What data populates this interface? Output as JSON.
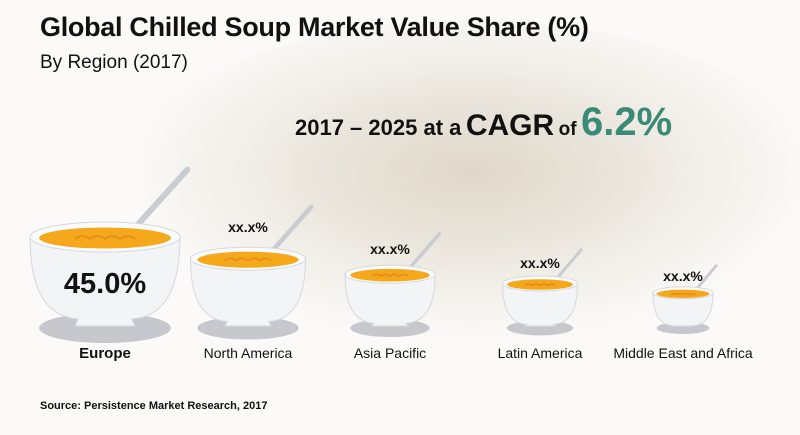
{
  "chart_data": {
    "type": "bar",
    "title": "Global Chilled Soup Market Value Share (%)",
    "subtitle": "By Region (2017)",
    "annotation": {
      "text_years": "2017 – 2025 at a",
      "text_cagr": "CAGR",
      "text_of": "of",
      "cagr_value": "6.2%"
    },
    "categories": [
      "Europe",
      "North America",
      "Asia Pacific",
      "Latin America",
      "Middle East and Africa"
    ],
    "values": [
      45.0,
      null,
      null,
      null,
      null
    ],
    "value_labels": [
      "45.0%",
      "xx.x%",
      "xx.x%",
      "xx.x%",
      "xx.x%"
    ],
    "size_rank": [
      1,
      2,
      3,
      4,
      5
    ],
    "xlabel": "",
    "ylabel": "",
    "source": "Source: Persistence Market Research, 2017"
  },
  "colors": {
    "soup": "#f5a81c",
    "cagr_accent": "#3b8a78",
    "bowl": "#f2f4f6",
    "shadow": "#b9bcc2"
  }
}
